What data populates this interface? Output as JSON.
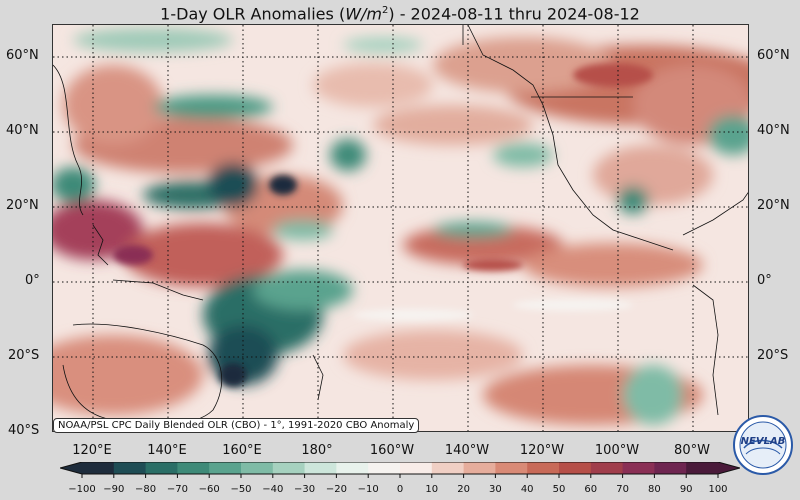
{
  "title": {
    "prefix": "1-Day OLR Anomalies (",
    "unit_base": "W/m",
    "unit_exp": "2",
    "suffix": ") - 2024-08-11 thru 2024-08-12"
  },
  "map": {
    "region": "Pacific basin",
    "lon_range_deg_east": [
      108,
      340
    ],
    "lat_range_deg": [
      -40,
      68
    ],
    "gridlines": "dotted",
    "lat_labels": [
      "60°N",
      "40°N",
      "20°N",
      "0°",
      "20°S",
      "40°S"
    ],
    "lon_labels": [
      "120°E",
      "140°E",
      "160°E",
      "180°",
      "160°W",
      "140°W",
      "120°W",
      "100°W",
      "80°W"
    ],
    "anomaly_features": [
      {
        "sign": "negative",
        "area": "western North Pacific 20-25N, 140-165E"
      },
      {
        "sign": "negative",
        "area": "South Pacific 5-25S, 150-175E"
      },
      {
        "sign": "negative",
        "area": "North Pacific 42N, 150-180E"
      },
      {
        "sign": "positive",
        "area": "Philippine Sea 10-20N, 118-130E"
      },
      {
        "sign": "positive",
        "area": "western Pacific 5-15N, 140-175E"
      },
      {
        "sign": "positive",
        "area": "Alaska / Gulf of Alaska 55-65N"
      },
      {
        "sign": "positive",
        "area": "eastern Pacific 10-20N, 120-100W"
      }
    ]
  },
  "source_note": "NOAA/PSL CPC Daily Blended OLR (CBO) - 1°, 1991-2020 CBO Anomaly",
  "colorbar": {
    "min": -100,
    "max": 100,
    "ticks": [
      "−100",
      "−90",
      "−80",
      "−70",
      "−60",
      "−50",
      "−40",
      "−30",
      "−20",
      "−10",
      "0",
      "10",
      "20",
      "30",
      "40",
      "50",
      "60",
      "70",
      "80",
      "90",
      "100"
    ],
    "colors_negative": [
      "#1e2c3c",
      "#1f4d55",
      "#2a6e66",
      "#3e8a78",
      "#5aa38e",
      "#7fbba6",
      "#a6d1bf",
      "#cde6db",
      "#e8f2ec",
      "#f6f3f0"
    ],
    "colors_positive": [
      "#f8ece8",
      "#f0cfc4",
      "#e6ad9c",
      "#d98a76",
      "#c86a58",
      "#b64f48",
      "#a03d4b",
      "#8a2f55",
      "#6e2550",
      "#4a1a3a"
    ]
  },
  "logo": {
    "text": "NEVLAB"
  }
}
